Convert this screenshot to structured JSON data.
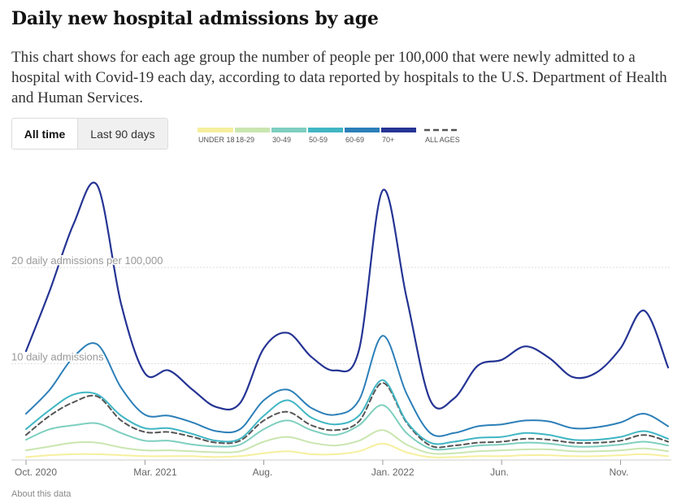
{
  "header": {
    "title": "Daily new hospital admissions by age",
    "description": "This chart shows for each age group the number of people per 100,000 that were newly admitted to a hospital with Covid-19 each day, according to data reported by hospitals to the U.S. Department of Health and Human Services."
  },
  "toggle": {
    "all_time": "All time",
    "last_90": "Last 90 days",
    "selected": "All time"
  },
  "legend": [
    {
      "label": "UNDER 18",
      "color": "#f6ef9e"
    },
    {
      "label": "18-29",
      "color": "#c9e6b0"
    },
    {
      "label": "30-49",
      "color": "#7ecfbf"
    },
    {
      "label": "50-59",
      "color": "#41b6c4"
    },
    {
      "label": "60-69",
      "color": "#2c7fb8"
    },
    {
      "label": "70+",
      "color": "#253494"
    },
    {
      "label": "ALL AGES",
      "color": "#555555",
      "dashed": true
    }
  ],
  "footer": {
    "about": "About this data"
  },
  "chart_data": {
    "type": "line",
    "ylabels": [
      "20 daily admissions per 100,000",
      "10 daily admissions"
    ],
    "yticks": [
      20,
      10
    ],
    "ylim": [
      0,
      30
    ],
    "grid": true,
    "x_ticks": [
      "Oct. 2020",
      "Mar. 2021",
      "Aug.",
      "Jan. 2022",
      "Jun.",
      "Nov."
    ],
    "x": [
      "Oct. 2020",
      "Nov. 2020",
      "Dec. 2020",
      "Jan. 2021",
      "Feb. 2021",
      "Mar. 2021",
      "Apr. 2021",
      "May 2021",
      "Jun. 2021",
      "Jul. 2021",
      "Aug. 2021",
      "Sep. 2021",
      "Oct. 2021",
      "Nov. 2021",
      "Dec. 2021",
      "Jan. 2022",
      "Feb. 2022",
      "Mar. 2022",
      "Apr. 2022",
      "May 2022",
      "Jun. 2022",
      "Jul. 2022",
      "Aug. 2022",
      "Sep. 2022",
      "Oct. 2022",
      "Nov. 2022",
      "Dec. 2022",
      "Jan. 2023"
    ],
    "series": [
      {
        "name": "70+",
        "color": "#253494",
        "dashed": false,
        "values": [
          11.3,
          17.6,
          24.5,
          28.5,
          16.2,
          9.0,
          9.3,
          7.3,
          5.5,
          5.9,
          11.6,
          13.2,
          10.7,
          9.3,
          11.4,
          28.0,
          16.9,
          6.2,
          6.4,
          9.8,
          10.4,
          11.8,
          10.6,
          8.6,
          9.1,
          11.6,
          15.5,
          9.6
        ]
      },
      {
        "name": "60-69",
        "color": "#2c7fb8",
        "dashed": false,
        "values": [
          4.8,
          7.3,
          10.7,
          12.0,
          7.5,
          4.7,
          4.6,
          3.9,
          3.0,
          3.2,
          6.2,
          7.3,
          5.4,
          4.7,
          6.2,
          12.9,
          6.9,
          2.8,
          2.8,
          3.5,
          3.7,
          4.1,
          4.0,
          3.3,
          3.4,
          3.9,
          4.8,
          3.5
        ]
      },
      {
        "name": "50-59",
        "color": "#41b6c4",
        "dashed": false,
        "values": [
          3.2,
          5.2,
          6.8,
          6.8,
          4.6,
          3.3,
          3.3,
          2.7,
          2.0,
          2.2,
          4.6,
          6.2,
          4.4,
          3.7,
          4.6,
          8.3,
          4.0,
          1.8,
          1.9,
          2.3,
          2.4,
          2.8,
          2.6,
          2.1,
          2.1,
          2.4,
          3.0,
          2.2
        ]
      },
      {
        "name": "30-49",
        "color": "#7ecfbf",
        "dashed": false,
        "values": [
          2.1,
          3.2,
          3.6,
          3.8,
          2.8,
          2.0,
          2.0,
          1.6,
          1.4,
          1.6,
          3.2,
          4.1,
          3.1,
          2.6,
          3.6,
          5.7,
          2.8,
          1.2,
          1.2,
          1.5,
          1.6,
          1.8,
          1.7,
          1.4,
          1.4,
          1.6,
          1.9,
          1.5
        ]
      },
      {
        "name": "18-29",
        "color": "#c9e6b0",
        "dashed": false,
        "values": [
          1.0,
          1.4,
          1.8,
          1.8,
          1.3,
          1.0,
          1.0,
          0.9,
          0.8,
          0.9,
          1.9,
          2.4,
          1.8,
          1.5,
          2.0,
          3.1,
          1.6,
          0.7,
          0.7,
          0.9,
          1.0,
          1.1,
          1.1,
          0.9,
          0.9,
          1.0,
          1.2,
          0.9
        ]
      },
      {
        "name": "UNDER 18",
        "color": "#f6ef9e",
        "dashed": false,
        "values": [
          0.3,
          0.5,
          0.6,
          0.6,
          0.5,
          0.4,
          0.4,
          0.4,
          0.3,
          0.4,
          0.7,
          0.9,
          0.6,
          0.6,
          0.9,
          1.7,
          0.8,
          0.3,
          0.3,
          0.4,
          0.4,
          0.5,
          0.5,
          0.4,
          0.4,
          0.5,
          0.6,
          0.4
        ]
      },
      {
        "name": "ALL AGES",
        "color": "#555555",
        "dashed": true,
        "values": [
          2.6,
          4.6,
          6.0,
          6.6,
          4.1,
          2.9,
          2.9,
          2.4,
          1.8,
          2.0,
          4.1,
          5.0,
          3.6,
          3.1,
          4.0,
          8.0,
          3.9,
          1.5,
          1.5,
          1.8,
          1.9,
          2.2,
          2.1,
          1.8,
          1.8,
          2.0,
          2.6,
          1.9
        ]
      }
    ]
  }
}
